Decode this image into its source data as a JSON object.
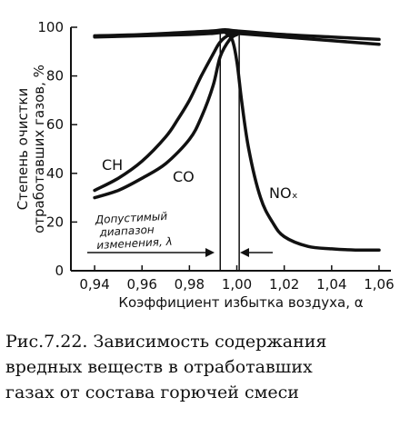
{
  "chart_data": {
    "type": "line",
    "xlabel": "Коэффициент избытка воздуха, α",
    "ylabel": [
      "Степень очистки",
      "отработавших газов, %"
    ],
    "xlim": [
      0.93,
      1.065
    ],
    "ylim": [
      0,
      100
    ],
    "x_ticks": [
      "0,94",
      "0,96",
      "0,98",
      "1,00",
      "1,02",
      "1,04",
      "1,06"
    ],
    "x_tick_values": [
      0.94,
      0.96,
      0.98,
      1.0,
      1.02,
      1.04,
      1.06
    ],
    "y_ticks": [
      "0",
      "20",
      "40",
      "60",
      "80",
      "100"
    ],
    "y_tick_values": [
      0,
      20,
      40,
      60,
      80,
      100
    ],
    "grid": false,
    "series": [
      {
        "name": "CH",
        "x": [
          0.94,
          0.95,
          0.96,
          0.97,
          0.975,
          0.98,
          0.985,
          0.99,
          0.993,
          0.997,
          1.0
        ],
        "y": [
          33,
          38,
          45,
          55,
          62,
          70,
          80,
          89,
          94,
          97,
          97
        ]
      },
      {
        "name": "CO",
        "x": [
          0.94,
          0.95,
          0.96,
          0.97,
          0.98,
          0.985,
          0.99,
          0.993,
          0.997,
          1.0
        ],
        "y": [
          30,
          33,
          38,
          44,
          54,
          63,
          76,
          88,
          95,
          97
        ]
      },
      {
        "name": "NOₓ",
        "x": [
          0.995,
          0.998,
          1.0,
          1.002,
          1.005,
          1.01,
          1.015,
          1.02,
          1.03,
          1.04,
          1.05,
          1.06
        ],
        "y": [
          98,
          95,
          86,
          70,
          50,
          30,
          20,
          14,
          10,
          9,
          8.5,
          8.5
        ]
      },
      {
        "name": "upper-1",
        "x": [
          0.94,
          0.96,
          0.98,
          0.99,
          0.995,
          1.0,
          1.02,
          1.04,
          1.06
        ],
        "y": [
          96.5,
          97,
          98,
          98.5,
          99,
          98.5,
          97,
          96,
          95
        ]
      },
      {
        "name": "upper-2",
        "x": [
          0.94,
          0.96,
          0.98,
          0.99,
          0.995,
          1.0,
          1.02,
          1.04,
          1.06
        ],
        "y": [
          96,
          96.5,
          97,
          97.5,
          98,
          97.5,
          96,
          94.5,
          93
        ]
      }
    ],
    "vertical_lines": [
      0.993,
      1.001
    ],
    "annotation": [
      "Допустимый",
      "диапазон",
      "изменения, λ"
    ],
    "caption": [
      "Рис.7.22. Зависимость содержания",
      "вредных веществ в отработавших",
      "газах от состава горючей смеси"
    ]
  }
}
